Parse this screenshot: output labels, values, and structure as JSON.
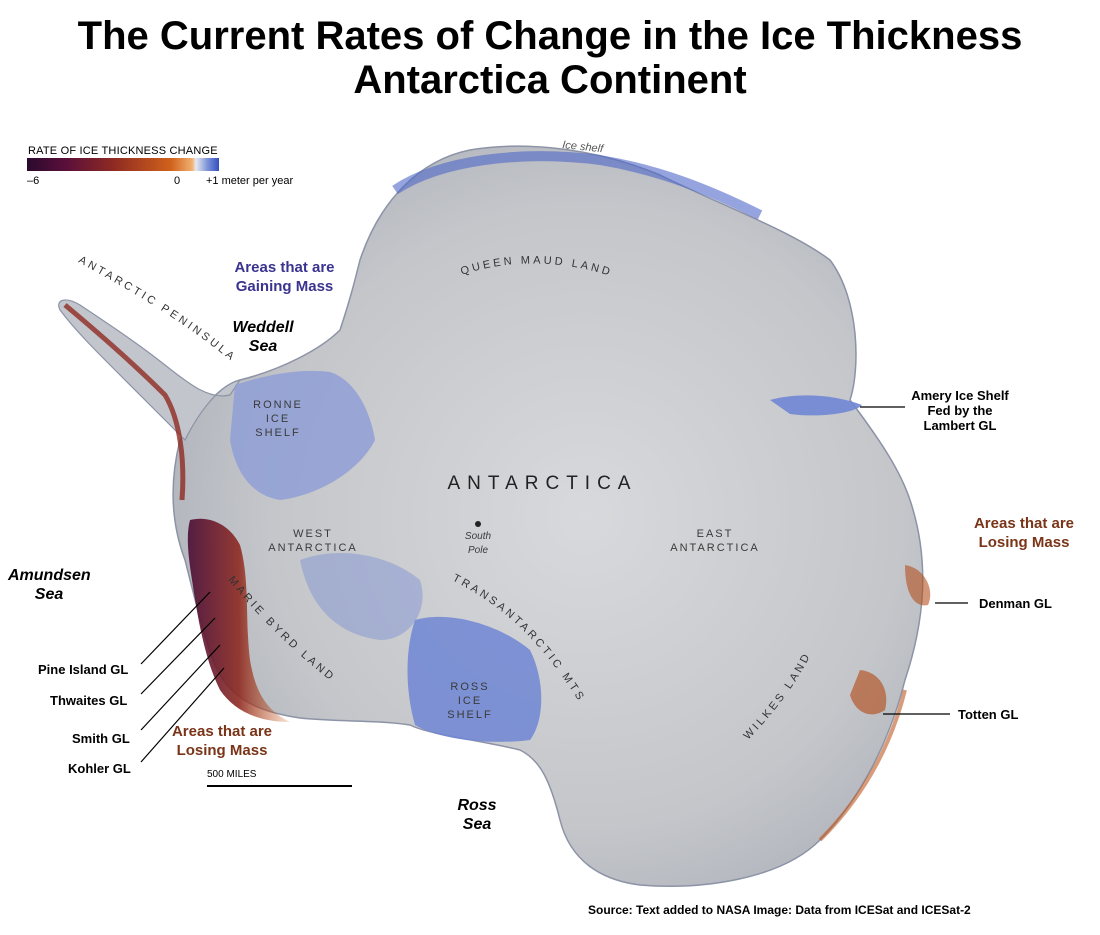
{
  "title": {
    "line1": "The Current Rates of Change in the Ice Thickness",
    "line2": "Antarctica Continent"
  },
  "legend": {
    "title": "RATE OF ICE THICKNESS CHANGE",
    "min_label": "–6",
    "zero_label": "0",
    "max_label": "+1 meter per year",
    "colors": [
      "#2a0a2e",
      "#8e2a22",
      "#d0621c",
      "#e6e8f0",
      "#3550c0"
    ]
  },
  "map": {
    "ice_shelf_label": "Ice shelf",
    "regions": {
      "antarctic_peninsula": "ANTARCTIC PENINSULA",
      "queen_maud_land": "QUEEN MAUD LAND",
      "ronne_ice_shelf": [
        "RONNE",
        "ICE",
        "SHELF"
      ],
      "antarctica": "ANTARCTICA",
      "west_antarctica": [
        "WEST",
        "ANTARCTICA"
      ],
      "east_antarctica": [
        "EAST",
        "ANTARCTICA"
      ],
      "south_pole": [
        "South",
        "Pole"
      ],
      "transantarctic_mts": "TRANSANTARCTIC MTS.",
      "marie_byrd_land": "MARIE BYRD LAND",
      "ross_ice_shelf": [
        "ROSS",
        "ICE",
        "SHELF"
      ],
      "wilkes_land": "WILKES LAND"
    },
    "seas": {
      "weddell": [
        "Weddell",
        "Sea"
      ],
      "amundsen": [
        "Amundsen",
        "Sea"
      ],
      "ross": [
        "Ross",
        "Sea"
      ]
    },
    "annotations": {
      "gaining": [
        "Areas that are",
        "Gaining Mass"
      ],
      "losing_east": [
        "Areas that are",
        "Losing Mass"
      ],
      "losing_west": [
        "Areas that are",
        "Losing Mass"
      ]
    },
    "glaciers": {
      "amery": [
        "Amery Ice Shelf",
        "Fed by the",
        "Lambert GL"
      ],
      "denman": "Denman GL",
      "totten": "Totten GL",
      "pine_island": "Pine Island GL",
      "thwaites": "Thwaites GL",
      "smith": "Smith GL",
      "kohler": "Kohler GL"
    },
    "scale_bar": "500 MILES"
  },
  "source": "Source: Text added to NASA Image: Data from ICESat and ICESat-2"
}
